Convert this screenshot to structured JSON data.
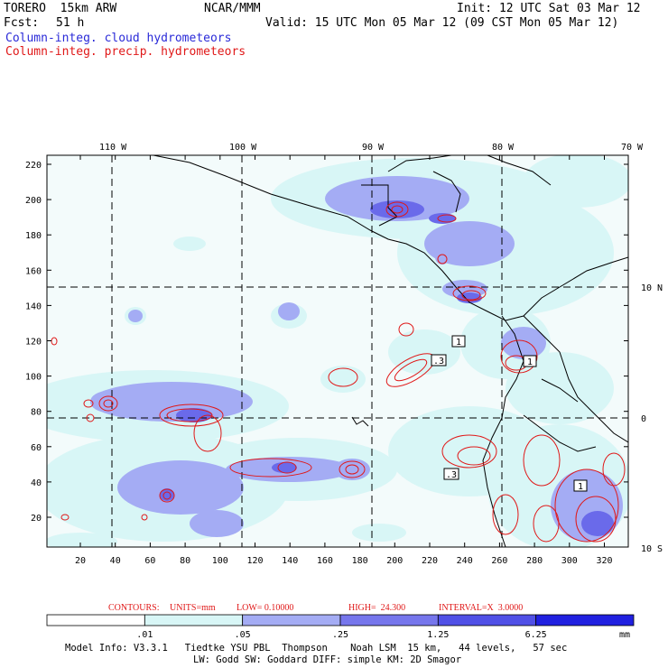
{
  "header": {
    "model_name": "TORERO  15km ARW",
    "org": "NCAR/MMM",
    "init": "Init: 12 UTC Sat 03 Mar 12",
    "fcst_label": "Fcst:",
    "fcst_hours": "51 h",
    "valid": "Valid: 15 UTC Mon 05 Mar 12 (09 CST Mon 05 Mar 12)",
    "field_cloud": "Column-integ. cloud hydrometeors",
    "field_precip": "Column-integ. precip. hydrometeors"
  },
  "map": {
    "lon_labels": [
      "110 W",
      "100 W",
      "90 W",
      "80 W",
      "70 W"
    ],
    "lat_labels": [
      "10 N",
      "0",
      "10 S"
    ],
    "y_ticks": [
      "220",
      "200",
      "180",
      "160",
      "140",
      "120",
      "100",
      "80",
      "60",
      "40",
      "20"
    ],
    "x_ticks": [
      "20",
      "40",
      "60",
      "80",
      "100",
      "120",
      "140",
      "160",
      "180",
      "200",
      "220",
      "240",
      "260",
      "280",
      "300",
      "320"
    ],
    "contour_labels": [
      "1",
      ".3",
      "1",
      ".3",
      "1"
    ]
  },
  "contour_info": {
    "label": "CONTOURS:",
    "units": "UNITS=mm",
    "low": "LOW= 0.10000",
    "high": "HIGH=  24.300",
    "interval": "INTERVAL=X  3.0000"
  },
  "colorbar": {
    "colors": [
      "#ffffff",
      "#d8f6f6",
      "#a4acf4",
      "#7676ec",
      "#5050e6",
      "#2020e0"
    ],
    "labels": [
      ".01",
      ".05",
      ".25",
      "1.25",
      "6.25"
    ],
    "unit": "mm"
  },
  "footer": {
    "line1": "Model Info: V3.3.1   Tiedtke YSU PBL  Thompson    Noah LSM  15 km,   44 levels,   57 sec",
    "line2": "LW: Godd SW: Goddard DIFF: simple KM: 2D Smagor"
  }
}
